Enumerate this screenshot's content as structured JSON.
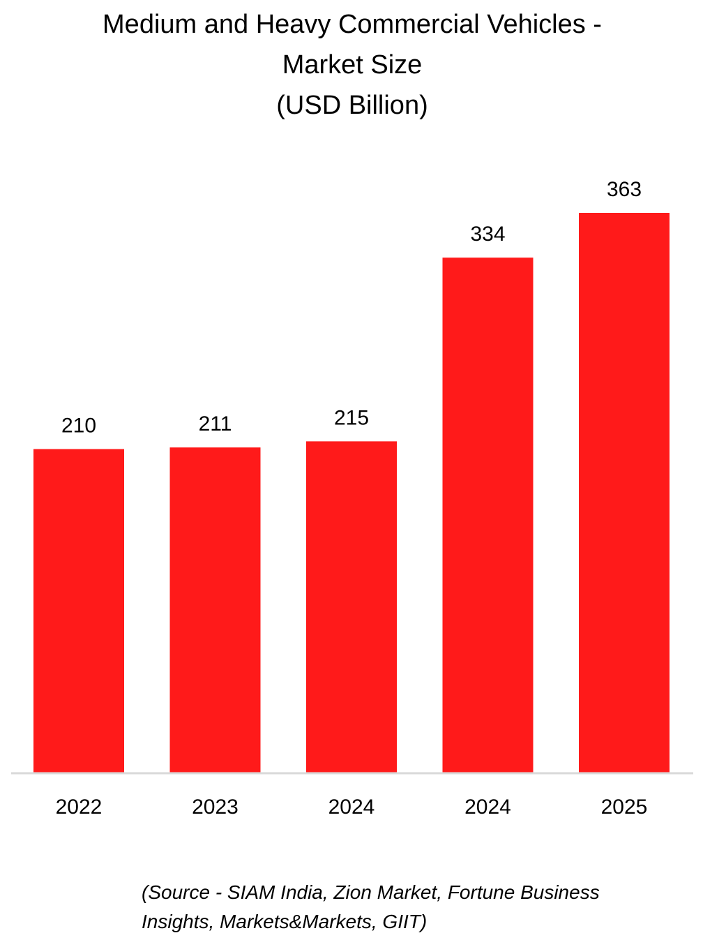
{
  "chart_data": {
    "type": "bar",
    "title_lines": [
      "Medium and Heavy Commercial Vehicles -",
      "Market Size",
      "(USD Billion)"
    ],
    "categories": [
      "2022",
      "2023",
      "2024",
      "2024",
      "2025"
    ],
    "values": [
      210,
      211,
      215,
      334,
      363
    ],
    "data_labels": [
      "210",
      "211",
      "215",
      "334",
      "363"
    ],
    "xlabel": "",
    "ylabel": "",
    "ylim": [
      0,
      363
    ],
    "grid": false,
    "legend": "none",
    "bar_color": "#FF1A1A",
    "axis_color": "#D9D9D9"
  },
  "source": {
    "line1": "(Source - SIAM India, Zion Market, Fortune Business",
    "line2": "Insights, Markets&Markets, GIIT)"
  }
}
